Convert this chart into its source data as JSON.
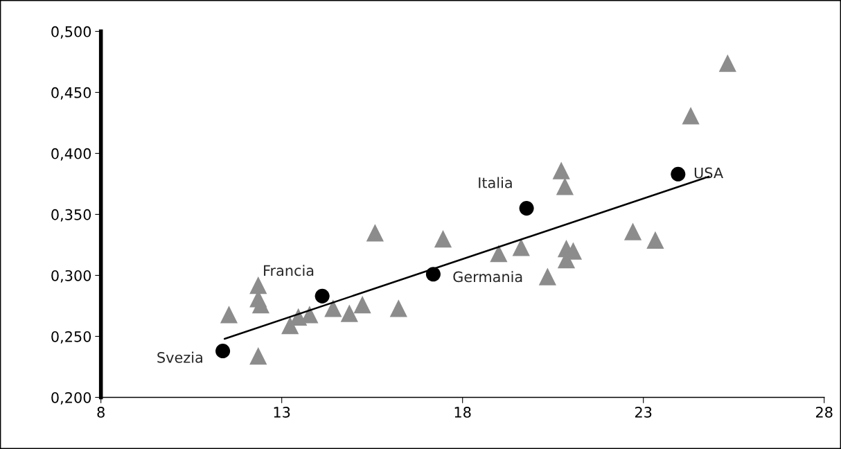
{
  "chart_data": {
    "type": "scatter",
    "xlim": [
      8,
      28
    ],
    "xticks": [
      8,
      13,
      18,
      23,
      28
    ],
    "ylim": [
      0.2,
      0.5
    ],
    "yticks": [
      {
        "value": 0.2,
        "label": "0,200"
      },
      {
        "value": 0.25,
        "label": "0,250"
      },
      {
        "value": 0.3,
        "label": "0,300"
      },
      {
        "value": 0.35,
        "label": "0,350"
      },
      {
        "value": 0.4,
        "label": "0,400"
      },
      {
        "value": 0.45,
        "label": "0,450"
      },
      {
        "value": 0.5,
        "label": "0,500"
      }
    ],
    "grid": false,
    "legend": false,
    "series": [
      {
        "marker": "triangle",
        "color": "#8c8c8c",
        "x": [
          11.54,
          12.35,
          12.35,
          12.42,
          12.35,
          13.23,
          13.46,
          13.77,
          14.42,
          14.87,
          15.23,
          15.58,
          16.23,
          17.46,
          19.0,
          19.62,
          20.35,
          20.73,
          20.83,
          20.87,
          21.06,
          20.87,
          22.71,
          23.33,
          24.31,
          25.33
        ],
        "values": [
          0.268,
          0.292,
          0.281,
          0.276,
          0.234,
          0.259,
          0.266,
          0.268,
          0.273,
          0.269,
          0.276,
          0.335,
          0.273,
          0.33,
          0.318,
          0.323,
          0.299,
          0.386,
          0.373,
          0.322,
          0.32,
          0.313,
          0.336,
          0.329,
          0.431,
          0.474
        ]
      },
      {
        "type": "line",
        "marker": "none",
        "line_style": "solid",
        "color": "#000000",
        "x": [
          11.42,
          24.81
        ],
        "values": [
          0.248,
          0.381
        ]
      },
      {
        "marker": "circle",
        "color": "#000000",
        "x": [
          11.37,
          14.12,
          17.19,
          19.77,
          23.96
        ],
        "values": [
          0.238,
          0.283,
          0.301,
          0.355,
          0.383
        ]
      }
    ],
    "annotations": [
      {
        "text": "Svezia",
        "x": 11.37,
        "y": 0.238
      },
      {
        "text": "Francia",
        "x": 14.12,
        "y": 0.283
      },
      {
        "text": "Germania",
        "x": 17.19,
        "y": 0.301
      },
      {
        "text": "Italia",
        "x": 19.77,
        "y": 0.355
      },
      {
        "text": "USA",
        "x": 23.96,
        "y": 0.383
      }
    ]
  }
}
